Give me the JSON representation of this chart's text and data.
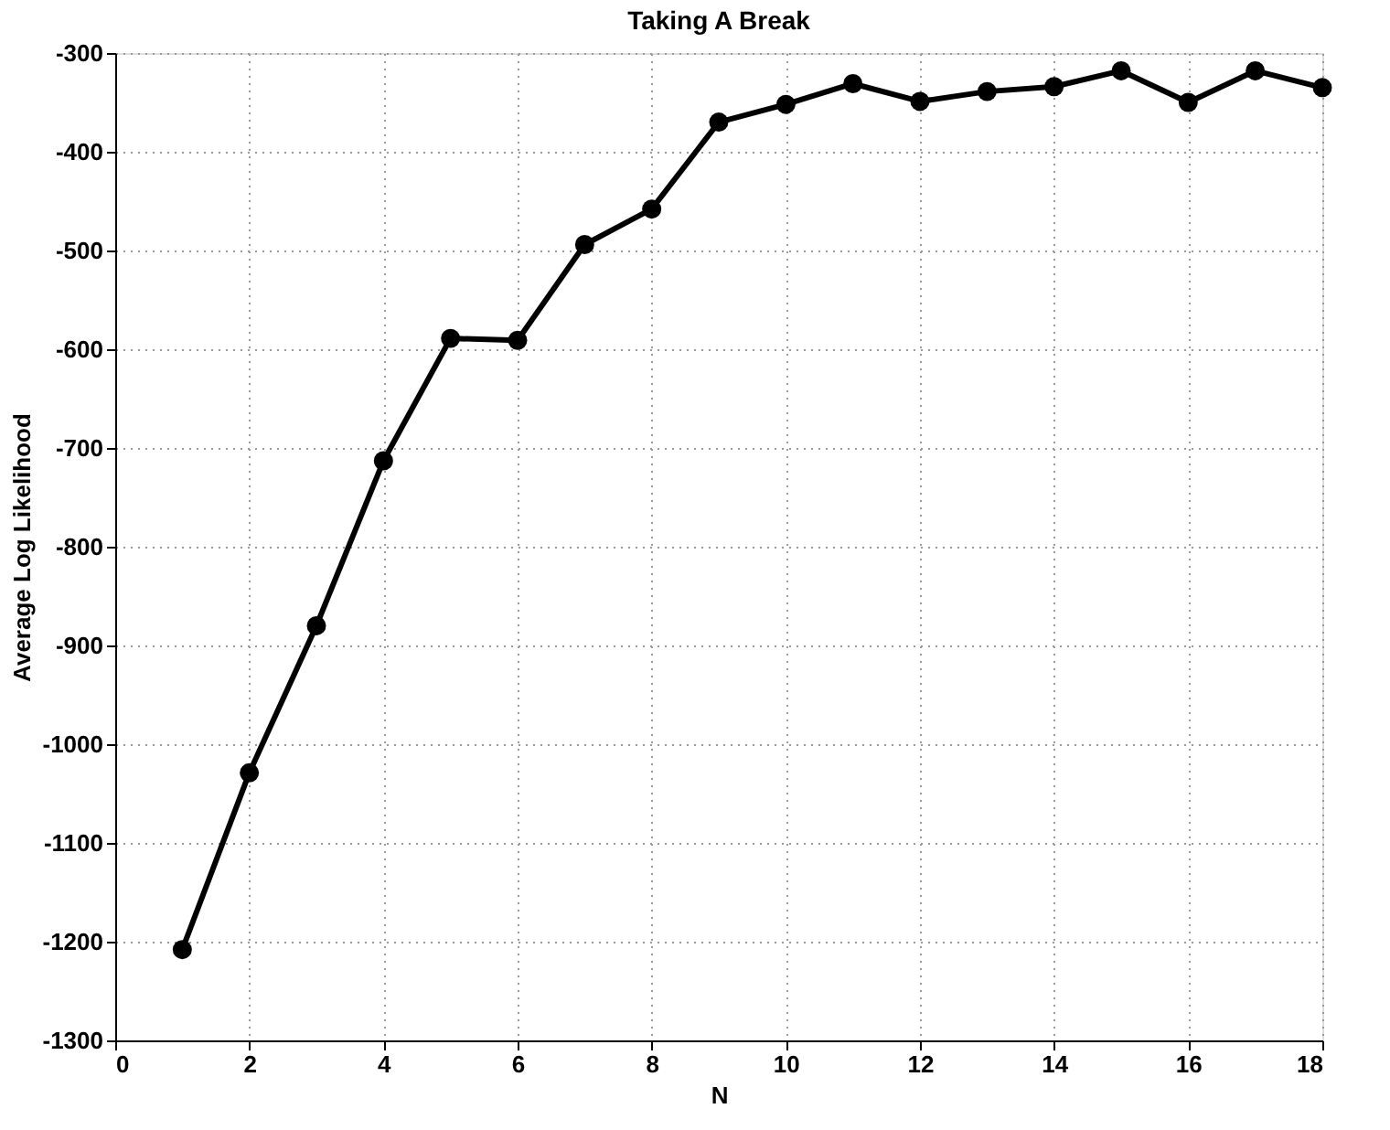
{
  "chart_data": {
    "type": "line",
    "title": "Taking A Break",
    "xlabel": "N",
    "ylabel": "Average Log Likelihood",
    "x": [
      1,
      2,
      3,
      4,
      5,
      6,
      7,
      8,
      9,
      10,
      11,
      12,
      13,
      14,
      15,
      16,
      17,
      18
    ],
    "series": [
      {
        "color": "#000000",
        "values": [
          -1208,
          -1029,
          -880,
          -713,
          -589,
          -591,
          -494,
          -458,
          -370,
          -352,
          -331,
          -349,
          -339,
          -334,
          -318,
          -350,
          -318,
          -335
        ]
      }
    ],
    "xlim": [
      0,
      18
    ],
    "xticks": [
      0,
      2,
      4,
      6,
      8,
      10,
      12,
      14,
      16,
      18
    ],
    "ylim": [
      -1300,
      -300
    ],
    "yticks": [
      -1300,
      -1200,
      -1100,
      -1000,
      -900,
      -800,
      -700,
      -600,
      -500,
      -400,
      -300
    ],
    "grid": true,
    "marker": "circle",
    "line_style": "solid"
  }
}
